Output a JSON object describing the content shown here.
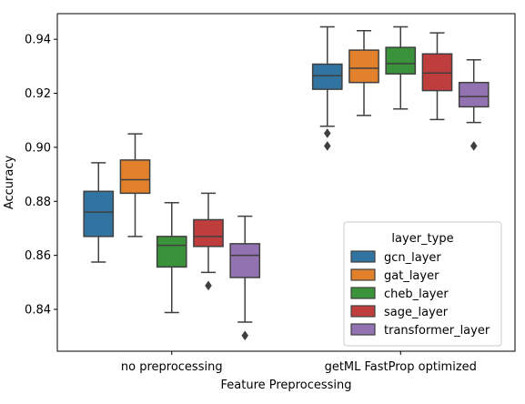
{
  "chart_data": {
    "type": "box",
    "xlabel": "Feature Preprocessing",
    "ylabel": "Accuracy",
    "ylim": [
      0.8245,
      0.9495
    ],
    "yticks": [
      0.84,
      0.86,
      0.88,
      0.9,
      0.92,
      0.94
    ],
    "ytick_labels": [
      "0.84",
      "0.86",
      "0.88",
      "0.90",
      "0.92",
      "0.94"
    ],
    "categories": [
      "no preprocessing",
      "getML FastProp optimized"
    ],
    "legend": {
      "title": "layer_type",
      "location": "lower right"
    },
    "series": [
      {
        "name": "gcn_layer",
        "color": "#3274a1",
        "boxes": [
          {
            "whisker_low": 0.8575,
            "q1": 0.867,
            "median": 0.876,
            "q3": 0.8837,
            "whisker_high": 0.8943,
            "outliers": []
          },
          {
            "whisker_low": 0.9078,
            "q1": 0.9215,
            "median": 0.9265,
            "q3": 0.9308,
            "whisker_high": 0.9446,
            "outliers": [
              0.9052,
              0.9005
            ]
          }
        ]
      },
      {
        "name": "gat_layer",
        "color": "#e1812c",
        "boxes": [
          {
            "whisker_low": 0.867,
            "q1": 0.883,
            "median": 0.888,
            "q3": 0.8953,
            "whisker_high": 0.905,
            "outliers": []
          },
          {
            "whisker_low": 0.9118,
            "q1": 0.924,
            "median": 0.9293,
            "q3": 0.936,
            "whisker_high": 0.9432,
            "outliers": []
          }
        ]
      },
      {
        "name": "cheb_layer",
        "color": "#3a923a",
        "boxes": [
          {
            "whisker_low": 0.8388,
            "q1": 0.8557,
            "median": 0.8637,
            "q3": 0.867,
            "whisker_high": 0.8795,
            "outliers": []
          },
          {
            "whisker_low": 0.9142,
            "q1": 0.9272,
            "median": 0.931,
            "q3": 0.937,
            "whisker_high": 0.9446,
            "outliers": []
          }
        ]
      },
      {
        "name": "sage_layer",
        "color": "#c03d3e",
        "boxes": [
          {
            "whisker_low": 0.8537,
            "q1": 0.8633,
            "median": 0.867,
            "q3": 0.8732,
            "whisker_high": 0.883,
            "outliers": [
              0.8488
            ]
          },
          {
            "whisker_low": 0.9103,
            "q1": 0.921,
            "median": 0.9275,
            "q3": 0.9346,
            "whisker_high": 0.9424,
            "outliers": []
          }
        ]
      },
      {
        "name": "transformer_layer",
        "color": "#9372b2",
        "boxes": [
          {
            "whisker_low": 0.8353,
            "q1": 0.8518,
            "median": 0.86,
            "q3": 0.8643,
            "whisker_high": 0.8745,
            "outliers": [
              0.8303
            ]
          },
          {
            "whisker_low": 0.9092,
            "q1": 0.915,
            "median": 0.9188,
            "q3": 0.924,
            "whisker_high": 0.9324,
            "outliers": [
              0.9005
            ]
          }
        ]
      }
    ]
  }
}
